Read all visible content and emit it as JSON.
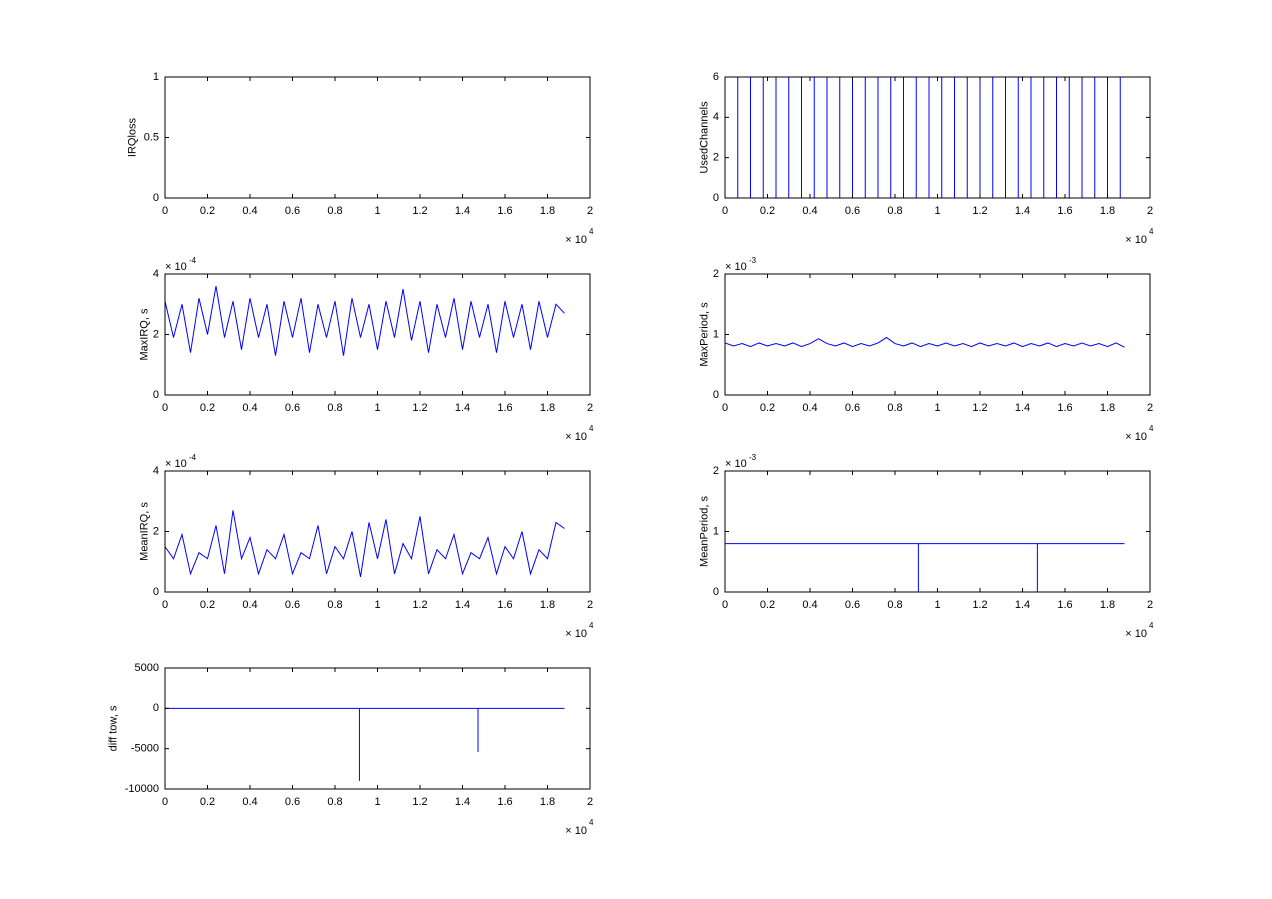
{
  "chart_data": [
    {
      "type": "line",
      "y_label": "IRQloss",
      "x": [
        0,
        1.88
      ],
      "series": [
        {
          "color": "#0000ff",
          "values": [
            0,
            0
          ]
        }
      ],
      "xlim": [
        0,
        2
      ],
      "xticks": [
        0,
        0.2,
        0.4,
        0.6,
        0.8,
        1,
        1.2,
        1.4,
        1.6,
        1.8,
        2
      ],
      "ylim": [
        0,
        1
      ],
      "yticks": [
        0,
        0.5,
        1
      ],
      "x_multiplier": "× 10",
      "x_exponent": "4"
    },
    {
      "type": "line",
      "y_label": "UsedChannels",
      "x": [
        0,
        0.06,
        0.06,
        0.06,
        0.12,
        0.12,
        0.12,
        0.18,
        0.18,
        0.18,
        0.24,
        0.24,
        0.24,
        0.3,
        0.3,
        0.3,
        0.36,
        0.36,
        0.36,
        0.42,
        0.42,
        0.42,
        0.48,
        0.48,
        0.48,
        0.54,
        0.54,
        0.54,
        0.6,
        0.6,
        0.6,
        0.66,
        0.66,
        0.66,
        0.72,
        0.72,
        0.72,
        0.78,
        0.78,
        0.78,
        0.84,
        0.84,
        0.84,
        0.9,
        0.9,
        0.9,
        0.96,
        0.96,
        0.96,
        1.02,
        1.02,
        1.02,
        1.08,
        1.08,
        1.08,
        1.14,
        1.14,
        1.14,
        1.2,
        1.2,
        1.2,
        1.26,
        1.26,
        1.26,
        1.32,
        1.32,
        1.32,
        1.38,
        1.38,
        1.38,
        1.44,
        1.44,
        1.44,
        1.5,
        1.5,
        1.5,
        1.56,
        1.56,
        1.56,
        1.62,
        1.62,
        1.62,
        1.68,
        1.68,
        1.68,
        1.74,
        1.74,
        1.74,
        1.8,
        1.8,
        1.8,
        1.86,
        1.86,
        1.86
      ],
      "series": [
        {
          "color": "#0000ff",
          "values": [
            0,
            0,
            6,
            0,
            0,
            6,
            0,
            0,
            6,
            0,
            0,
            6,
            0,
            0,
            6,
            0,
            0,
            6,
            0,
            0,
            6,
            0,
            0,
            6,
            0,
            0,
            6,
            0,
            0,
            6,
            0,
            0,
            6,
            0,
            0,
            6,
            0,
            0,
            6,
            0,
            0,
            6,
            0,
            0,
            6,
            0,
            0,
            6,
            0,
            0,
            6,
            0,
            0,
            6,
            0,
            0,
            6,
            0,
            0,
            6,
            0,
            0,
            6,
            0,
            0,
            6,
            0,
            0,
            6,
            0,
            0,
            6,
            0,
            0,
            6,
            0,
            0,
            6,
            0,
            0,
            6,
            0,
            0,
            6,
            0,
            0,
            6,
            0,
            0,
            6,
            0,
            0,
            6,
            0
          ]
        }
      ],
      "xlim": [
        0,
        2
      ],
      "xticks": [
        0,
        0.2,
        0.4,
        0.6,
        0.8,
        1,
        1.2,
        1.4,
        1.6,
        1.8,
        2
      ],
      "ylim": [
        0,
        6
      ],
      "yticks": [
        0,
        2,
        4,
        6
      ],
      "x_multiplier": "× 10",
      "x_exponent": "4"
    },
    {
      "type": "line",
      "y_label": "MaxIRQ, s",
      "x": [
        0,
        0.04,
        0.08,
        0.12,
        0.16,
        0.2,
        0.24,
        0.28,
        0.32,
        0.36,
        0.4,
        0.44,
        0.48,
        0.52,
        0.56,
        0.6,
        0.64,
        0.68,
        0.72,
        0.76,
        0.8,
        0.84,
        0.88,
        0.92,
        0.96,
        1,
        1.04,
        1.08,
        1.12,
        1.16,
        1.2,
        1.24,
        1.28,
        1.32,
        1.36,
        1.4,
        1.44,
        1.48,
        1.52,
        1.56,
        1.6,
        1.64,
        1.68,
        1.72,
        1.76,
        1.8,
        1.84,
        1.88
      ],
      "series": [
        {
          "color": "#0000ff",
          "values": [
            3.1,
            1.9,
            3.0,
            1.4,
            3.2,
            2.0,
            3.6,
            1.9,
            3.1,
            1.5,
            3.2,
            1.9,
            3.0,
            1.3,
            3.1,
            1.9,
            3.2,
            1.4,
            3.0,
            1.9,
            3.1,
            1.3,
            3.2,
            1.9,
            3.0,
            1.5,
            3.1,
            1.9,
            3.5,
            1.8,
            3.1,
            1.4,
            3.0,
            1.9,
            3.2,
            1.5,
            3.1,
            1.9,
            3.0,
            1.4,
            3.1,
            1.9,
            3.0,
            1.5,
            3.1,
            1.9,
            3.0,
            2.7
          ]
        }
      ],
      "xlim": [
        0,
        2
      ],
      "xticks": [
        0,
        0.2,
        0.4,
        0.6,
        0.8,
        1,
        1.2,
        1.4,
        1.6,
        1.8,
        2
      ],
      "ylim": [
        0,
        4
      ],
      "yticks": [
        0,
        2,
        4
      ],
      "x_multiplier": "× 10",
      "x_exponent": "4",
      "y_multiplier": "× 10",
      "y_exponent": "-4"
    },
    {
      "type": "line",
      "y_label": "MaxPeriod, s",
      "x": [
        0,
        0.04,
        0.08,
        0.12,
        0.16,
        0.2,
        0.24,
        0.28,
        0.32,
        0.36,
        0.4,
        0.44,
        0.48,
        0.52,
        0.56,
        0.6,
        0.64,
        0.68,
        0.72,
        0.76,
        0.8,
        0.84,
        0.88,
        0.92,
        0.96,
        1,
        1.04,
        1.08,
        1.12,
        1.16,
        1.2,
        1.24,
        1.28,
        1.32,
        1.36,
        1.4,
        1.44,
        1.48,
        1.52,
        1.56,
        1.6,
        1.64,
        1.68,
        1.72,
        1.76,
        1.8,
        1.84,
        1.88
      ],
      "series": [
        {
          "color": "#0000ff",
          "values": [
            0.86,
            0.81,
            0.85,
            0.8,
            0.86,
            0.81,
            0.85,
            0.81,
            0.86,
            0.8,
            0.85,
            0.93,
            0.85,
            0.81,
            0.86,
            0.8,
            0.85,
            0.81,
            0.86,
            0.95,
            0.85,
            0.81,
            0.86,
            0.8,
            0.85,
            0.81,
            0.86,
            0.81,
            0.85,
            0.8,
            0.86,
            0.81,
            0.85,
            0.81,
            0.86,
            0.8,
            0.85,
            0.81,
            0.86,
            0.8,
            0.85,
            0.81,
            0.86,
            0.81,
            0.85,
            0.8,
            0.86,
            0.79
          ]
        }
      ],
      "xlim": [
        0,
        2
      ],
      "xticks": [
        0,
        0.2,
        0.4,
        0.6,
        0.8,
        1,
        1.2,
        1.4,
        1.6,
        1.8,
        2
      ],
      "ylim": [
        0,
        2
      ],
      "yticks": [
        0,
        1,
        2
      ],
      "x_multiplier": "× 10",
      "x_exponent": "4",
      "y_multiplier": "× 10",
      "y_exponent": "-3"
    },
    {
      "type": "line",
      "y_label": "MeanIRQ, s",
      "x": [
        0,
        0.04,
        0.08,
        0.12,
        0.16,
        0.2,
        0.24,
        0.28,
        0.32,
        0.36,
        0.4,
        0.44,
        0.48,
        0.52,
        0.56,
        0.6,
        0.64,
        0.68,
        0.72,
        0.76,
        0.8,
        0.84,
        0.88,
        0.92,
        0.96,
        1,
        1.04,
        1.08,
        1.12,
        1.16,
        1.2,
        1.24,
        1.28,
        1.32,
        1.36,
        1.4,
        1.44,
        1.48,
        1.52,
        1.56,
        1.6,
        1.64,
        1.68,
        1.72,
        1.76,
        1.8,
        1.84,
        1.88
      ],
      "series": [
        {
          "color": "#0000ff",
          "values": [
            1.5,
            1.1,
            1.9,
            0.6,
            1.3,
            1.1,
            2.2,
            0.6,
            2.7,
            1.1,
            1.8,
            0.6,
            1.4,
            1.1,
            1.9,
            0.6,
            1.3,
            1.1,
            2.2,
            0.6,
            1.5,
            1.1,
            2.0,
            0.5,
            2.3,
            1.1,
            2.4,
            0.6,
            1.6,
            1.1,
            2.5,
            0.6,
            1.4,
            1.1,
            1.9,
            0.6,
            1.3,
            1.1,
            1.8,
            0.6,
            1.5,
            1.1,
            2.0,
            0.6,
            1.4,
            1.1,
            2.3,
            2.1
          ]
        }
      ],
      "xlim": [
        0,
        2
      ],
      "xticks": [
        0,
        0.2,
        0.4,
        0.6,
        0.8,
        1,
        1.2,
        1.4,
        1.6,
        1.8,
        2
      ],
      "ylim": [
        0,
        4
      ],
      "yticks": [
        0,
        2,
        4
      ],
      "x_multiplier": "× 10",
      "x_exponent": "4",
      "y_multiplier": "× 10",
      "y_exponent": "-4"
    },
    {
      "type": "line",
      "y_label": "MeanPeriod, s",
      "x": [
        0,
        0.91,
        0.91,
        0.91,
        1.47,
        1.47,
        1.47,
        1.88
      ],
      "series": [
        {
          "color": "#0000ff",
          "values": [
            0.8,
            0.8,
            0,
            0.8,
            0.8,
            0,
            0.8,
            0.8
          ]
        }
      ],
      "xlim": [
        0,
        2
      ],
      "xticks": [
        0,
        0.2,
        0.4,
        0.6,
        0.8,
        1,
        1.2,
        1.4,
        1.6,
        1.8,
        2
      ],
      "ylim": [
        0,
        2
      ],
      "yticks": [
        0,
        1,
        2
      ],
      "x_multiplier": "× 10",
      "x_exponent": "4",
      "y_multiplier": "× 10",
      "y_exponent": "-3"
    },
    {
      "type": "line",
      "y_label": "diff tow, s",
      "x": [
        0,
        0.915,
        0.915,
        0.915,
        1.473,
        1.473,
        1.473,
        1.88
      ],
      "series": [
        {
          "color": "#0000ff",
          "values": [
            0,
            0,
            -9000,
            0,
            0,
            -5400,
            0,
            0
          ]
        }
      ],
      "xlim": [
        0,
        2
      ],
      "xticks": [
        0,
        0.2,
        0.4,
        0.6,
        0.8,
        1,
        1.2,
        1.4,
        1.6,
        1.8,
        2
      ],
      "ylim": [
        -10000,
        5000
      ],
      "yticks": [
        -10000,
        -5000,
        0,
        5000
      ],
      "x_multiplier": "× 10",
      "x_exponent": "4"
    }
  ]
}
